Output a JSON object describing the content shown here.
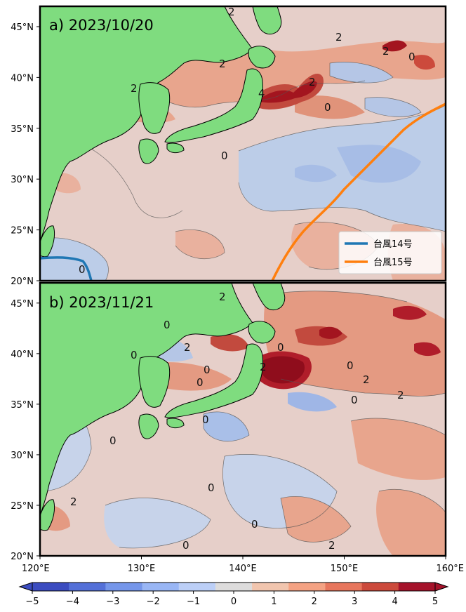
{
  "panels": [
    {
      "title": "a) 2023/10/20",
      "contour_labels": [
        "2",
        "2",
        "2",
        "0",
        "2",
        "2",
        "4",
        "2",
        "0",
        "0",
        "0"
      ],
      "legend": [
        {
          "label": "台風14号",
          "color": "#1f77b4"
        },
        {
          "label": "台風15号",
          "color": "#ff7f0e"
        }
      ]
    },
    {
      "title": "b) 2023/11/21",
      "contour_labels": [
        "2",
        "0",
        "2",
        "0",
        "0",
        "0",
        "0",
        "2",
        "0",
        "2",
        "0",
        "0",
        "0",
        "2",
        "0",
        "2",
        "0",
        "0",
        "2"
      ]
    }
  ],
  "axes": {
    "lat_ticks": [
      "45°N",
      "40°N",
      "35°N",
      "30°N",
      "25°N",
      "20°N"
    ],
    "lon_ticks": [
      "120°E",
      "130°E",
      "140°E",
      "150°E",
      "160°E"
    ],
    "lon_range": [
      120,
      160
    ],
    "lat_range": [
      20,
      47
    ]
  },
  "colorbar": {
    "ticks": [
      "−5",
      "−4",
      "−3",
      "−2",
      "−1",
      "0",
      "1",
      "2",
      "3",
      "4",
      "5"
    ],
    "range": [
      -5,
      5
    ],
    "colors": [
      "#3b4cc0",
      "#5470d8",
      "#7596ea",
      "#99b6f5",
      "#bccff7",
      "#dddcdc",
      "#f1c5ae",
      "#f4a283",
      "#e7765d",
      "#cc4a3c",
      "#a5122a"
    ],
    "extend": "both"
  },
  "colors": {
    "land": "#7fdc7f",
    "neutral": "#e6cfc9",
    "warm": "#e49a82",
    "cool": "#b5c6e6",
    "hot": "#b01d2a"
  }
}
